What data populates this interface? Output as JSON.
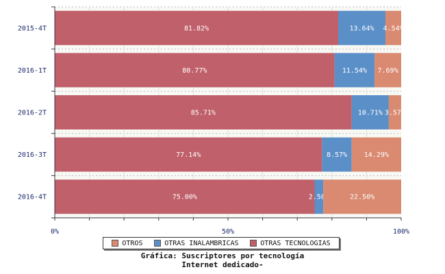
{
  "chart_data": {
    "type": "bar",
    "orientation": "horizontal",
    "stacked": true,
    "percent": true,
    "categories": [
      "2015-4T",
      "2016-1T",
      "2016-2T",
      "2016-3T",
      "2016-4T"
    ],
    "series": [
      {
        "name": "OTRAS TECNOLOGIAS",
        "color": "#c0606a",
        "values": [
          81.82,
          80.77,
          85.71,
          77.14,
          75.0
        ],
        "labels": [
          "81.82%",
          "80.77%",
          "85.71%",
          "77.14%",
          "75.00%"
        ]
      },
      {
        "name": "OTRAS INALAMBRICAS",
        "color": "#5b8fc7",
        "values": [
          13.64,
          11.54,
          10.71,
          8.57,
          2.5
        ],
        "labels": [
          "13.64%",
          "11.54%",
          "10.71%",
          "8.57%",
          "2.50%"
        ]
      },
      {
        "name": "OTROS",
        "color": "#d98a70",
        "values": [
          4.54,
          7.69,
          3.57,
          14.29,
          22.5
        ],
        "labels": [
          "4.54%",
          "7.69%",
          "3.57%",
          "14.29%",
          "22.50%"
        ]
      }
    ],
    "xlim": [
      0,
      100
    ],
    "xticks": [
      "0%",
      "50%",
      "100%"
    ],
    "legend_position": "bottom",
    "grid": true
  },
  "legend": {
    "items": [
      {
        "label": "OTROS",
        "color": "#d98a70"
      },
      {
        "label": "OTRAS INALAMBRICAS",
        "color": "#5b8fc7"
      },
      {
        "label": "OTRAS TECNOLOGIAS",
        "color": "#c0606a"
      }
    ]
  },
  "caption": {
    "line1": "Gráfica: Suscriptores por tecnología",
    "line2": "Internet dedicado-"
  }
}
